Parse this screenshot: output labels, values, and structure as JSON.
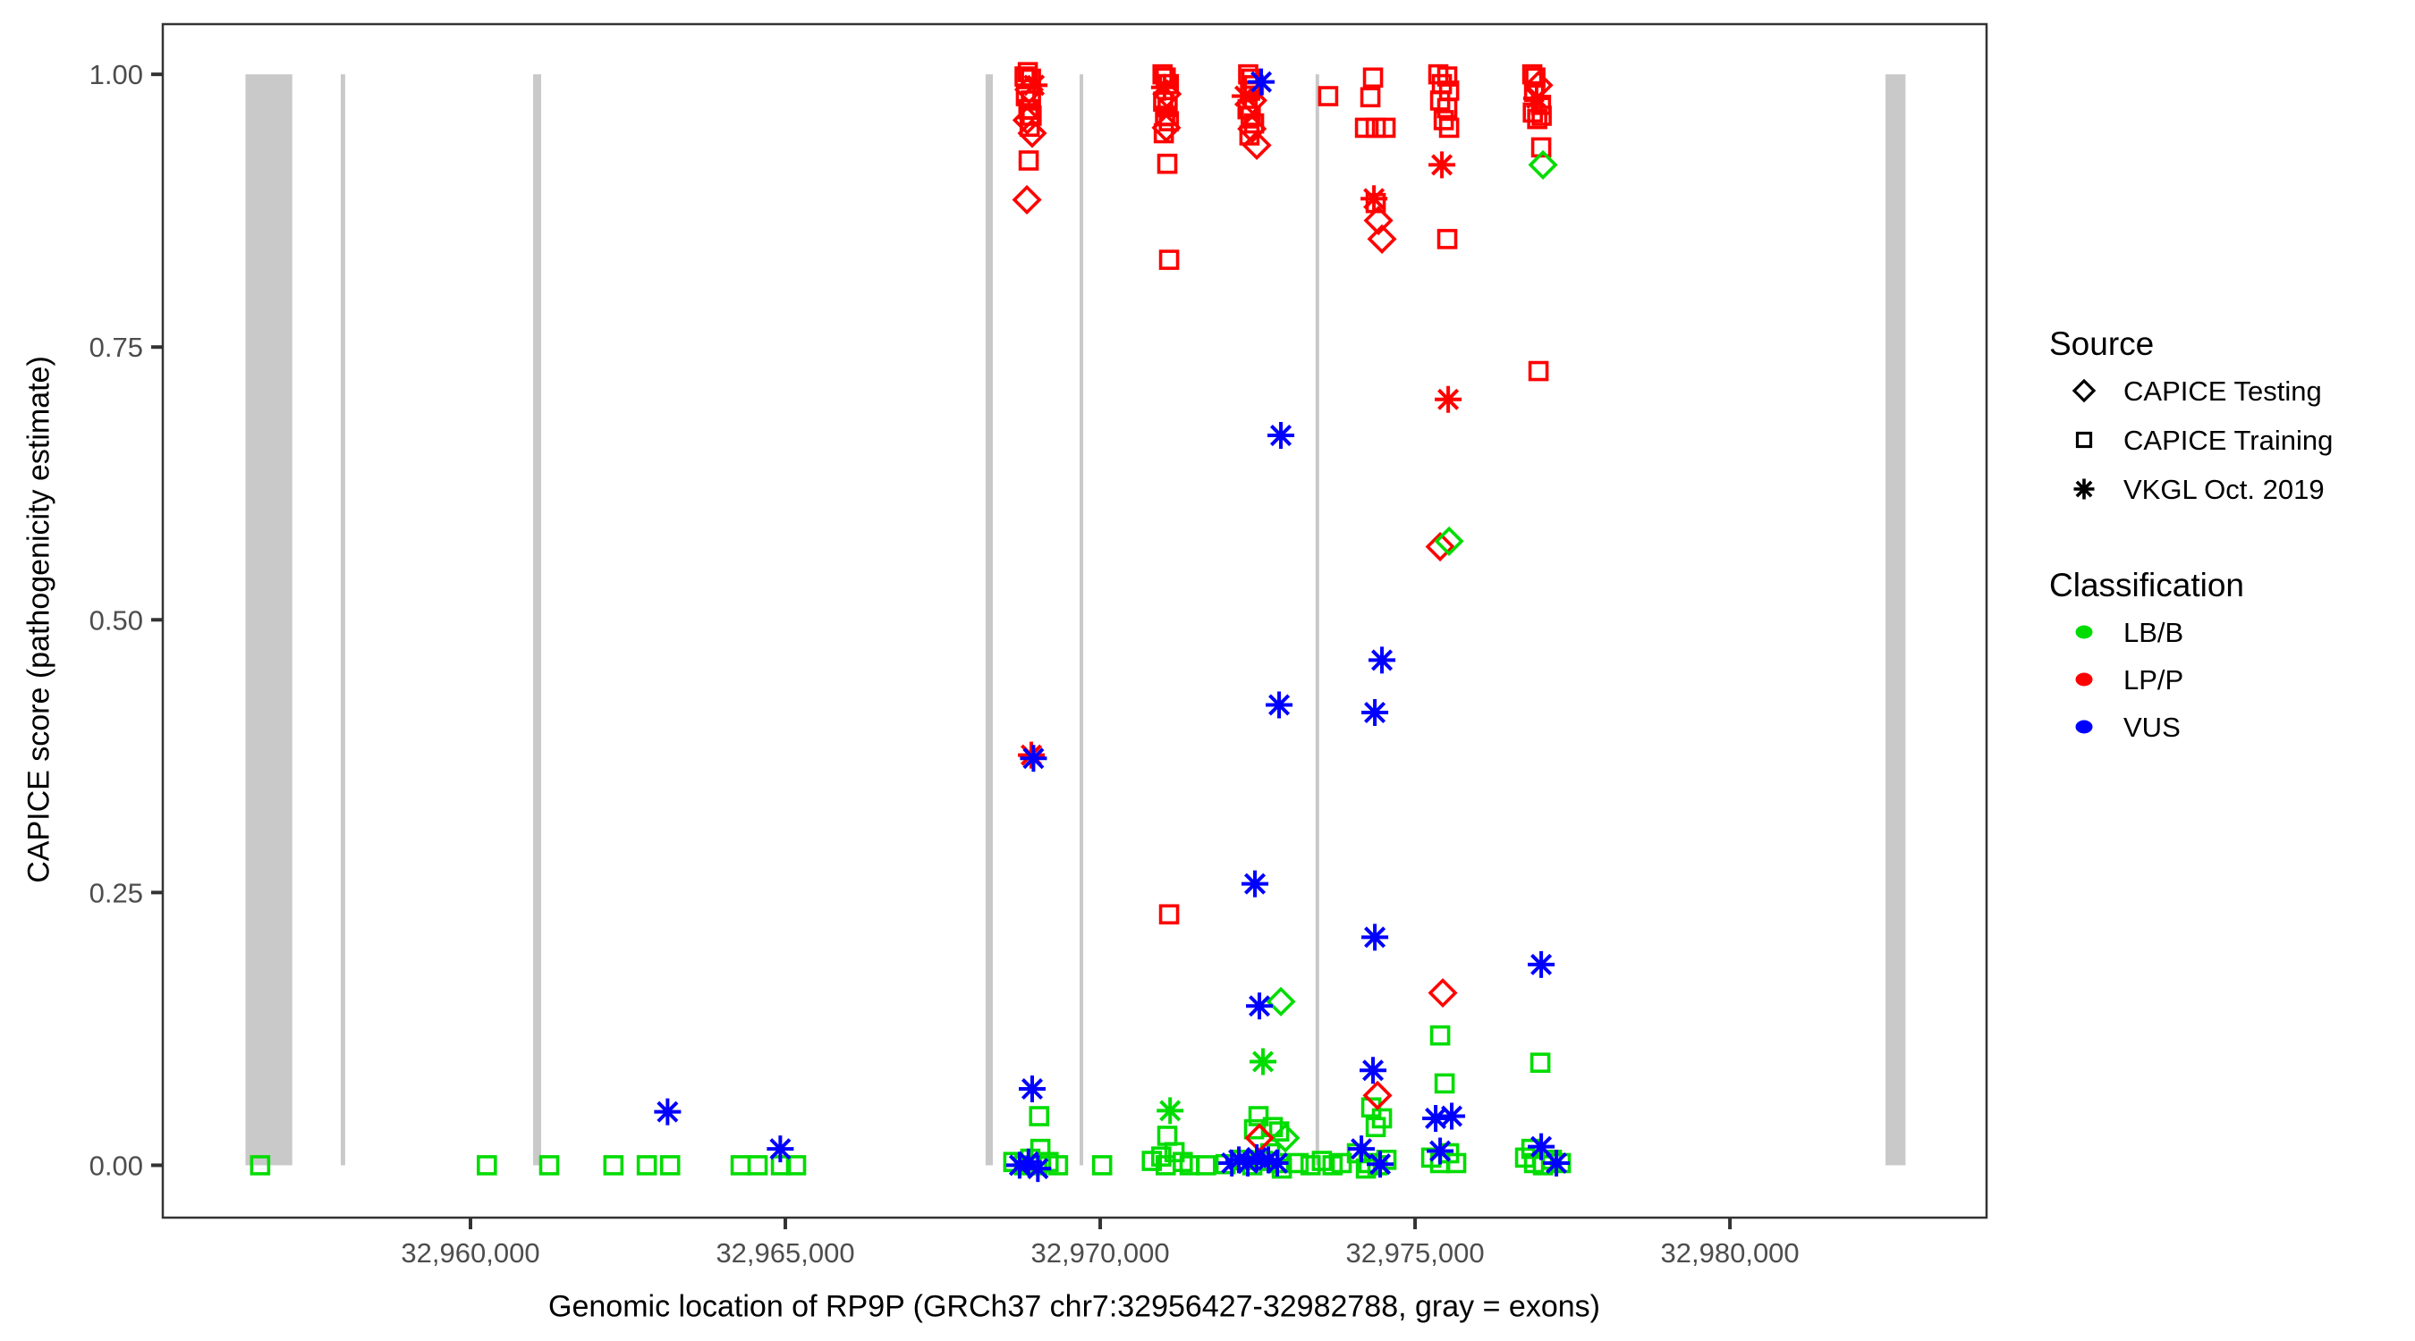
{
  "chart_data": {
    "type": "scatter",
    "x_axis": {
      "title": "Genomic location of RP9P (GRCh37 chr7:32956427-32982788, gray = exons)",
      "range": [
        32955114,
        32984075
      ],
      "ticks": [
        {
          "value": 32960000,
          "label": "32,960,000"
        },
        {
          "value": 32965000,
          "label": "32,965,000"
        },
        {
          "value": 32970000,
          "label": "32,970,000"
        },
        {
          "value": 32975000,
          "label": "32,975,000"
        },
        {
          "value": 32980000,
          "label": "32,980,000"
        }
      ]
    },
    "y_axis": {
      "title": "CAPICE score (pathogenicity estimate)",
      "range": [
        -0.048,
        1.046
      ],
      "ticks": [
        {
          "value": 1.0,
          "label": "1.00"
        },
        {
          "value": 0.75,
          "label": "0.75"
        },
        {
          "value": 0.5,
          "label": "0.50"
        },
        {
          "value": 0.25,
          "label": "0.25"
        },
        {
          "value": 0.0,
          "label": "0.00"
        }
      ]
    },
    "exons_bp": [
      [
        32956427,
        32957170
      ],
      [
        32957940,
        32958010
      ],
      [
        32960994,
        32961122
      ],
      [
        32968180,
        32968295
      ],
      [
        32969673,
        32969730
      ],
      [
        32973420,
        32973475
      ],
      [
        32982470,
        32982788
      ]
    ],
    "legend": {
      "source": {
        "title": "Source",
        "items": [
          {
            "label": "CAPICE Testing",
            "marker": "D"
          },
          {
            "label": "CAPICE Training",
            "marker": "S"
          },
          {
            "label": "VKGL Oct. 2019",
            "marker": "A"
          }
        ]
      },
      "classification": {
        "title": "Classification",
        "items": [
          {
            "label": "LB/B",
            "class": "g"
          },
          {
            "label": "LP/P",
            "class": "r"
          },
          {
            "label": "VUS",
            "class": "b"
          }
        ]
      }
    },
    "colors": {
      "g": "#00DC00",
      "r": "#FF0000",
      "b": "#0000FF",
      "exon": "#C9C9C9",
      "axis": "#333333",
      "tick_label": "#4D4D4D"
    },
    "marker_legend": {
      "D": "CAPICE Testing diamond",
      "S": "CAPICE Training square",
      "A": "VKGL Oct. 2019 asterisk"
    },
    "points": [
      [
        32956660,
        0.0,
        "S",
        "g"
      ],
      [
        32960260,
        0.0,
        "S",
        "g"
      ],
      [
        32961250,
        0.0,
        "S",
        "g"
      ],
      [
        32962270,
        0.0,
        "S",
        "g"
      ],
      [
        32962800,
        0.0,
        "S",
        "g"
      ],
      [
        32963170,
        0.0,
        "S",
        "g"
      ],
      [
        32964290,
        0.0,
        "S",
        "g"
      ],
      [
        32964560,
        0.0,
        "S",
        "g"
      ],
      [
        32964930,
        0.0,
        "S",
        "g"
      ],
      [
        32965170,
        0.0,
        "S",
        "g"
      ],
      [
        32963130,
        0.049,
        "A",
        "b"
      ],
      [
        32964920,
        0.015,
        "A",
        "b"
      ],
      [
        32968620,
        0.003,
        "S",
        "g"
      ],
      [
        32968790,
        0.0,
        "S",
        "g"
      ],
      [
        32968890,
        0.006,
        "S",
        "g"
      ],
      [
        32969000,
        0.0,
        "S",
        "g"
      ],
      [
        32969180,
        0.003,
        "S",
        "g"
      ],
      [
        32969330,
        0.0,
        "S",
        "g"
      ],
      [
        32969050,
        0.015,
        "S",
        "g"
      ],
      [
        32968720,
        0.0,
        "A",
        "b"
      ],
      [
        32968860,
        0.003,
        "A",
        "b"
      ],
      [
        32969010,
        -0.003,
        "A",
        "b"
      ],
      [
        32969030,
        0.045,
        "S",
        "g"
      ],
      [
        32968920,
        0.07,
        "A",
        "b"
      ],
      [
        32968906,
        0.376,
        "A",
        "r"
      ],
      [
        32968940,
        0.373,
        "A",
        "b"
      ],
      [
        32968800,
        0.998,
        "S",
        "r"
      ],
      [
        32968850,
        1.002,
        "S",
        "r"
      ],
      [
        32968900,
        0.996,
        "S",
        "r"
      ],
      [
        32968950,
        0.99,
        "A",
        "r"
      ],
      [
        32968870,
        0.986,
        "D",
        "r"
      ],
      [
        32968820,
        0.98,
        "S",
        "r"
      ],
      [
        32968900,
        0.976,
        "S",
        "r"
      ],
      [
        32968860,
        0.968,
        "S",
        "r"
      ],
      [
        32968910,
        0.962,
        "S",
        "r"
      ],
      [
        32968840,
        0.958,
        "D",
        "r"
      ],
      [
        32968880,
        0.952,
        "S",
        "r"
      ],
      [
        32968920,
        0.946,
        "D",
        "r"
      ],
      [
        32968864,
        0.921,
        "S",
        "r"
      ],
      [
        32968836,
        0.885,
        "D",
        "r"
      ],
      [
        32970030,
        0.0,
        "S",
        "g"
      ],
      [
        32970820,
        0.004,
        "S",
        "g"
      ],
      [
        32970970,
        0.008,
        "S",
        "g"
      ],
      [
        32971040,
        0.0,
        "S",
        "g"
      ],
      [
        32971180,
        0.012,
        "S",
        "g"
      ],
      [
        32971310,
        0.003,
        "S",
        "g"
      ],
      [
        32971420,
        0.0,
        "S",
        "g"
      ],
      [
        32971065,
        0.027,
        "S",
        "g"
      ],
      [
        32971110,
        0.05,
        "A",
        "g"
      ],
      [
        32970990,
        1.0,
        "S",
        "r"
      ],
      [
        32971040,
        0.997,
        "S",
        "r"
      ],
      [
        32971090,
        0.991,
        "S",
        "r"
      ],
      [
        32971020,
        0.988,
        "A",
        "r"
      ],
      [
        32971060,
        0.982,
        "D",
        "r"
      ],
      [
        32971000,
        0.975,
        "S",
        "r"
      ],
      [
        32971070,
        0.97,
        "S",
        "r"
      ],
      [
        32971030,
        0.962,
        "S",
        "r"
      ],
      [
        32971090,
        0.957,
        "S",
        "r"
      ],
      [
        32971050,
        0.951,
        "D",
        "r"
      ],
      [
        32971010,
        0.946,
        "S",
        "r"
      ],
      [
        32971065,
        0.918,
        "S",
        "r"
      ],
      [
        32971094,
        0.83,
        "S",
        "r"
      ],
      [
        32971094,
        0.23,
        "S",
        "r"
      ],
      [
        32971680,
        0.0,
        "S",
        "g"
      ],
      [
        32971990,
        0.001,
        "S",
        "g"
      ],
      [
        32972090,
        0.002,
        "A",
        "b"
      ],
      [
        32972300,
        0.98,
        "A",
        "r"
      ],
      [
        32972350,
        1.0,
        "S",
        "r"
      ],
      [
        32972400,
        0.996,
        "S",
        "r"
      ],
      [
        32972440,
        0.99,
        "S",
        "r"
      ],
      [
        32972380,
        0.985,
        "S",
        "r"
      ],
      [
        32972420,
        0.976,
        "D",
        "r"
      ],
      [
        32972340,
        0.968,
        "S",
        "r"
      ],
      [
        32972390,
        0.962,
        "S",
        "r"
      ],
      [
        32972443,
        0.955,
        "S",
        "r"
      ],
      [
        32972410,
        0.95,
        "D",
        "r"
      ],
      [
        32972370,
        0.944,
        "S",
        "r"
      ],
      [
        32972486,
        0.935,
        "D",
        "r"
      ],
      [
        32972557,
        0.993,
        "A",
        "b"
      ],
      [
        32972273,
        0.005,
        "S",
        "g"
      ],
      [
        32972415,
        0.0,
        "S",
        "g"
      ],
      [
        32972585,
        0.004,
        "S",
        "g"
      ],
      [
        32972699,
        0.011,
        "S",
        "g"
      ],
      [
        32972841,
        0.002,
        "S",
        "g"
      ],
      [
        32972884,
        -0.003,
        "S",
        "g"
      ],
      [
        32972443,
        0.033,
        "S",
        "g"
      ],
      [
        32972514,
        0.045,
        "S",
        "g"
      ],
      [
        32972741,
        0.035,
        "S",
        "g"
      ],
      [
        32972841,
        0.031,
        "S",
        "g"
      ],
      [
        32972940,
        0.025,
        "D",
        "g"
      ],
      [
        32972528,
        0.025,
        "D",
        "r"
      ],
      [
        32972202,
        0.005,
        "A",
        "b"
      ],
      [
        32972344,
        0.002,
        "A",
        "b"
      ],
      [
        32972486,
        0.007,
        "A",
        "b"
      ],
      [
        32972670,
        0.005,
        "A",
        "b"
      ],
      [
        32972812,
        0.002,
        "A",
        "b"
      ],
      [
        32973150,
        0.002,
        "S",
        "g"
      ],
      [
        32973340,
        0.0,
        "S",
        "g"
      ],
      [
        32973520,
        0.004,
        "S",
        "g"
      ],
      [
        32973690,
        0.0,
        "S",
        "g"
      ],
      [
        32973835,
        0.002,
        "S",
        "g"
      ],
      [
        32973620,
        0.98,
        "S",
        "r"
      ],
      [
        32974332,
        0.997,
        "S",
        "r"
      ],
      [
        32974290,
        0.979,
        "S",
        "r"
      ],
      [
        32974205,
        0.951,
        "S",
        "r"
      ],
      [
        32974375,
        0.951,
        "S",
        "r"
      ],
      [
        32974531,
        0.951,
        "S",
        "r"
      ],
      [
        32974375,
        0.882,
        "S",
        "r"
      ],
      [
        32974347,
        0.886,
        "A",
        "r"
      ],
      [
        32974418,
        0.866,
        "D",
        "r"
      ],
      [
        32974474,
        0.849,
        "D",
        "r"
      ],
      [
        32974077,
        0.011,
        "S",
        "g"
      ],
      [
        32974261,
        0.002,
        "S",
        "g"
      ],
      [
        32974403,
        0.0,
        "S",
        "g"
      ],
      [
        32974545,
        0.005,
        "S",
        "g"
      ],
      [
        32974219,
        -0.003,
        "S",
        "g"
      ],
      [
        32974304,
        0.053,
        "S",
        "g"
      ],
      [
        32974474,
        0.043,
        "S",
        "g"
      ],
      [
        32974375,
        0.035,
        "S",
        "g"
      ],
      [
        32974148,
        0.015,
        "A",
        "b"
      ],
      [
        32974446,
        0.001,
        "A",
        "b"
      ],
      [
        32974332,
        0.087,
        "A",
        "b"
      ],
      [
        32974403,
        0.064,
        "D",
        "r"
      ],
      [
        32974361,
        0.209,
        "A",
        "b"
      ],
      [
        32974361,
        0.415,
        "A",
        "b"
      ],
      [
        32974474,
        0.463,
        "A",
        "b"
      ],
      [
        32975369,
        1.0,
        "S",
        "r"
      ],
      [
        32975511,
        0.998,
        "S",
        "r"
      ],
      [
        32975426,
        0.991,
        "S",
        "r"
      ],
      [
        32975540,
        0.985,
        "S",
        "r"
      ],
      [
        32975398,
        0.976,
        "S",
        "r"
      ],
      [
        32975511,
        0.969,
        "S",
        "r"
      ],
      [
        32975455,
        0.958,
        "S",
        "r"
      ],
      [
        32975540,
        0.951,
        "S",
        "r"
      ],
      [
        32975426,
        0.917,
        "A",
        "r"
      ],
      [
        32975511,
        0.849,
        "S",
        "r"
      ],
      [
        32975526,
        0.702,
        "A",
        "r"
      ],
      [
        32975398,
        0.567,
        "D",
        "r"
      ],
      [
        32975540,
        0.572,
        "D",
        "g"
      ],
      [
        32975256,
        0.007,
        "S",
        "g"
      ],
      [
        32975398,
        0.002,
        "S",
        "g"
      ],
      [
        32975540,
        0.011,
        "S",
        "g"
      ],
      [
        32975653,
        0.002,
        "S",
        "g"
      ],
      [
        32975327,
        0.043,
        "A",
        "b"
      ],
      [
        32975582,
        0.045,
        "A",
        "b"
      ],
      [
        32975398,
        0.013,
        "A",
        "b"
      ],
      [
        32975440,
        0.158,
        "D",
        "r"
      ],
      [
        32975398,
        0.119,
        "S",
        "g"
      ],
      [
        32975469,
        0.075,
        "S",
        "g"
      ],
      [
        32976861,
        1.0,
        "S",
        "r"
      ],
      [
        32976910,
        0.997,
        "S",
        "r"
      ],
      [
        32976960,
        0.99,
        "D",
        "r"
      ],
      [
        32976890,
        0.984,
        "S",
        "r"
      ],
      [
        32976930,
        0.978,
        "A",
        "r"
      ],
      [
        32977000,
        0.972,
        "S",
        "r"
      ],
      [
        32976870,
        0.965,
        "S",
        "r"
      ],
      [
        32976940,
        0.959,
        "S",
        "r"
      ],
      [
        32977010,
        0.962,
        "S",
        "r"
      ],
      [
        32977003,
        0.933,
        "S",
        "r"
      ],
      [
        32977031,
        0.917,
        "D",
        "g"
      ],
      [
        32976960,
        0.728,
        "S",
        "r"
      ],
      [
        32976747,
        0.007,
        "S",
        "g"
      ],
      [
        32976889,
        0.002,
        "S",
        "g"
      ],
      [
        32977031,
        0.0,
        "S",
        "g"
      ],
      [
        32977173,
        0.005,
        "S",
        "g"
      ],
      [
        32977315,
        0.002,
        "S",
        "g"
      ],
      [
        32976847,
        0.015,
        "S",
        "g"
      ],
      [
        32977003,
        0.017,
        "A",
        "b"
      ],
      [
        32977244,
        0.002,
        "A",
        "b"
      ],
      [
        32976989,
        0.094,
        "S",
        "g"
      ],
      [
        32977003,
        0.184,
        "A",
        "b"
      ],
      [
        32972869,
        0.669,
        "A",
        "b"
      ],
      [
        32972841,
        0.422,
        "A",
        "b"
      ],
      [
        32972457,
        0.258,
        "A",
        "b"
      ],
      [
        32972869,
        0.15,
        "D",
        "g"
      ],
      [
        32972528,
        0.146,
        "A",
        "b"
      ],
      [
        32972585,
        0.095,
        "A",
        "g"
      ]
    ]
  }
}
